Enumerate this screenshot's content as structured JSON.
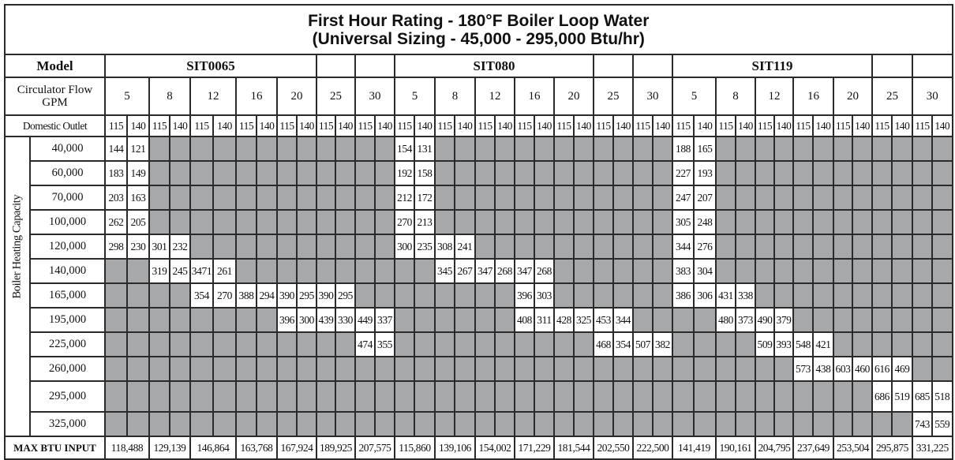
{
  "title_line1": "First Hour Rating - 180°F Boiler Loop Water",
  "title_line2": "(Universal Sizing - 45,000 - 295,000 Btu/hr)",
  "model_label": "Model",
  "models": [
    "SIT0065",
    "SIT080",
    "SIT119"
  ],
  "circulator_label": "Circulator Flow GPM",
  "gpm": [
    "5",
    "8",
    "12",
    "16",
    "20",
    "25",
    "30"
  ],
  "domestic_label": "Domestic Outlet",
  "outlets": [
    "115",
    "140"
  ],
  "side_label": "Boiler Heating Capacity",
  "colors": {
    "grid": "#2a2a2a",
    "unavailable": "#a7a8aa"
  },
  "rows": [
    {
      "capacity": "40,000",
      "cells": [
        {
          "g": 0,
          "v": [
            "144",
            "121"
          ]
        },
        {
          "g": 7,
          "v": [
            "154",
            "131"
          ]
        },
        {
          "g": 14,
          "v": [
            "188",
            "165"
          ]
        }
      ]
    },
    {
      "capacity": "60,000",
      "cells": [
        {
          "g": 0,
          "v": [
            "183",
            "149"
          ]
        },
        {
          "g": 7,
          "v": [
            "192",
            "158"
          ]
        },
        {
          "g": 14,
          "v": [
            "227",
            "193"
          ]
        }
      ]
    },
    {
      "capacity": "70,000",
      "cells": [
        {
          "g": 0,
          "v": [
            "203",
            "163"
          ]
        },
        {
          "g": 7,
          "v": [
            "212",
            "172"
          ]
        },
        {
          "g": 14,
          "v": [
            "247",
            "207"
          ]
        }
      ]
    },
    {
      "capacity": "100,000",
      "cells": [
        {
          "g": 0,
          "v": [
            "262",
            "205"
          ]
        },
        {
          "g": 7,
          "v": [
            "270",
            "213"
          ]
        },
        {
          "g": 14,
          "v": [
            "305",
            "248"
          ]
        }
      ]
    },
    {
      "capacity": "120,000",
      "cells": [
        {
          "g": 0,
          "v": [
            "298",
            "230"
          ]
        },
        {
          "g": 1,
          "v": [
            "301",
            "232"
          ]
        },
        {
          "g": 7,
          "v": [
            "300",
            "235"
          ]
        },
        {
          "g": 8,
          "v": [
            "308",
            "241"
          ]
        },
        {
          "g": 14,
          "v": [
            "344",
            "276"
          ]
        }
      ]
    },
    {
      "capacity": "140,000",
      "cells": [
        {
          "g": 1,
          "v": [
            "319",
            "245"
          ]
        },
        {
          "g": 2,
          "v": [
            "3471",
            "261"
          ]
        },
        {
          "g": 8,
          "v": [
            "345",
            "267"
          ]
        },
        {
          "g": 9,
          "v": [
            "347",
            "268"
          ]
        },
        {
          "g": 10,
          "v": [
            "347",
            "268"
          ]
        },
        {
          "g": 14,
          "v": [
            "383",
            "304"
          ]
        }
      ]
    },
    {
      "capacity": "165,000",
      "cells": [
        {
          "g": 2,
          "v": [
            "354",
            "270"
          ]
        },
        {
          "g": 3,
          "v": [
            "388",
            "294"
          ]
        },
        {
          "g": 4,
          "v": [
            "390",
            "295"
          ]
        },
        {
          "g": 5,
          "v": [
            "390",
            "295"
          ]
        },
        {
          "g": 10,
          "v": [
            "396",
            "303"
          ]
        },
        {
          "g": 14,
          "v": [
            "386",
            "306"
          ]
        },
        {
          "g": 15,
          "v": [
            "431",
            "338"
          ]
        }
      ]
    },
    {
      "capacity": "195,000",
      "cells": [
        {
          "g": 4,
          "v": [
            "396",
            "300"
          ]
        },
        {
          "g": 5,
          "v": [
            "439",
            "330"
          ]
        },
        {
          "g": 6,
          "v": [
            "449",
            "337"
          ]
        },
        {
          "g": 10,
          "v": [
            "408",
            "311"
          ]
        },
        {
          "g": 11,
          "v": [
            "428",
            "325"
          ]
        },
        {
          "g": 12,
          "v": [
            "453",
            "344"
          ]
        },
        {
          "g": 15,
          "v": [
            "480",
            "373"
          ]
        },
        {
          "g": 16,
          "v": [
            "490",
            "379"
          ]
        }
      ]
    },
    {
      "capacity": "225,000",
      "cells": [
        {
          "g": 6,
          "v": [
            "474",
            "355"
          ]
        },
        {
          "g": 12,
          "v": [
            "468",
            "354"
          ]
        },
        {
          "g": 13,
          "v": [
            "507",
            "382"
          ]
        },
        {
          "g": 16,
          "v": [
            "509",
            "393"
          ]
        },
        {
          "g": 17,
          "v": [
            "548",
            "421"
          ]
        }
      ]
    },
    {
      "capacity": "260,000",
      "cells": [
        {
          "g": 17,
          "v": [
            "573",
            "438"
          ]
        },
        {
          "g": 18,
          "v": [
            "603",
            "460"
          ]
        },
        {
          "g": 19,
          "v": [
            "616",
            "469"
          ]
        }
      ]
    },
    {
      "capacity": "295,000",
      "cells": [
        {
          "g": 19,
          "v": [
            "686",
            "519"
          ]
        },
        {
          "g": 20,
          "v": [
            "685",
            "518"
          ]
        }
      ]
    },
    {
      "capacity": "325,000",
      "cells": [
        {
          "g": 20,
          "v": [
            "743",
            "559"
          ]
        }
      ]
    }
  ],
  "max_label": "MAX BTU INPUT",
  "max_btu": [
    "118,488",
    "129,139",
    "146,864",
    "163,768",
    "167,924",
    "189,925",
    "207,575",
    "115,860",
    "139,106",
    "154,002",
    "171,229",
    "181,544",
    "202,550",
    "222,500",
    "141,419",
    "190,161",
    "204,795",
    "237,649",
    "253,504",
    "295,875",
    "331,225"
  ]
}
